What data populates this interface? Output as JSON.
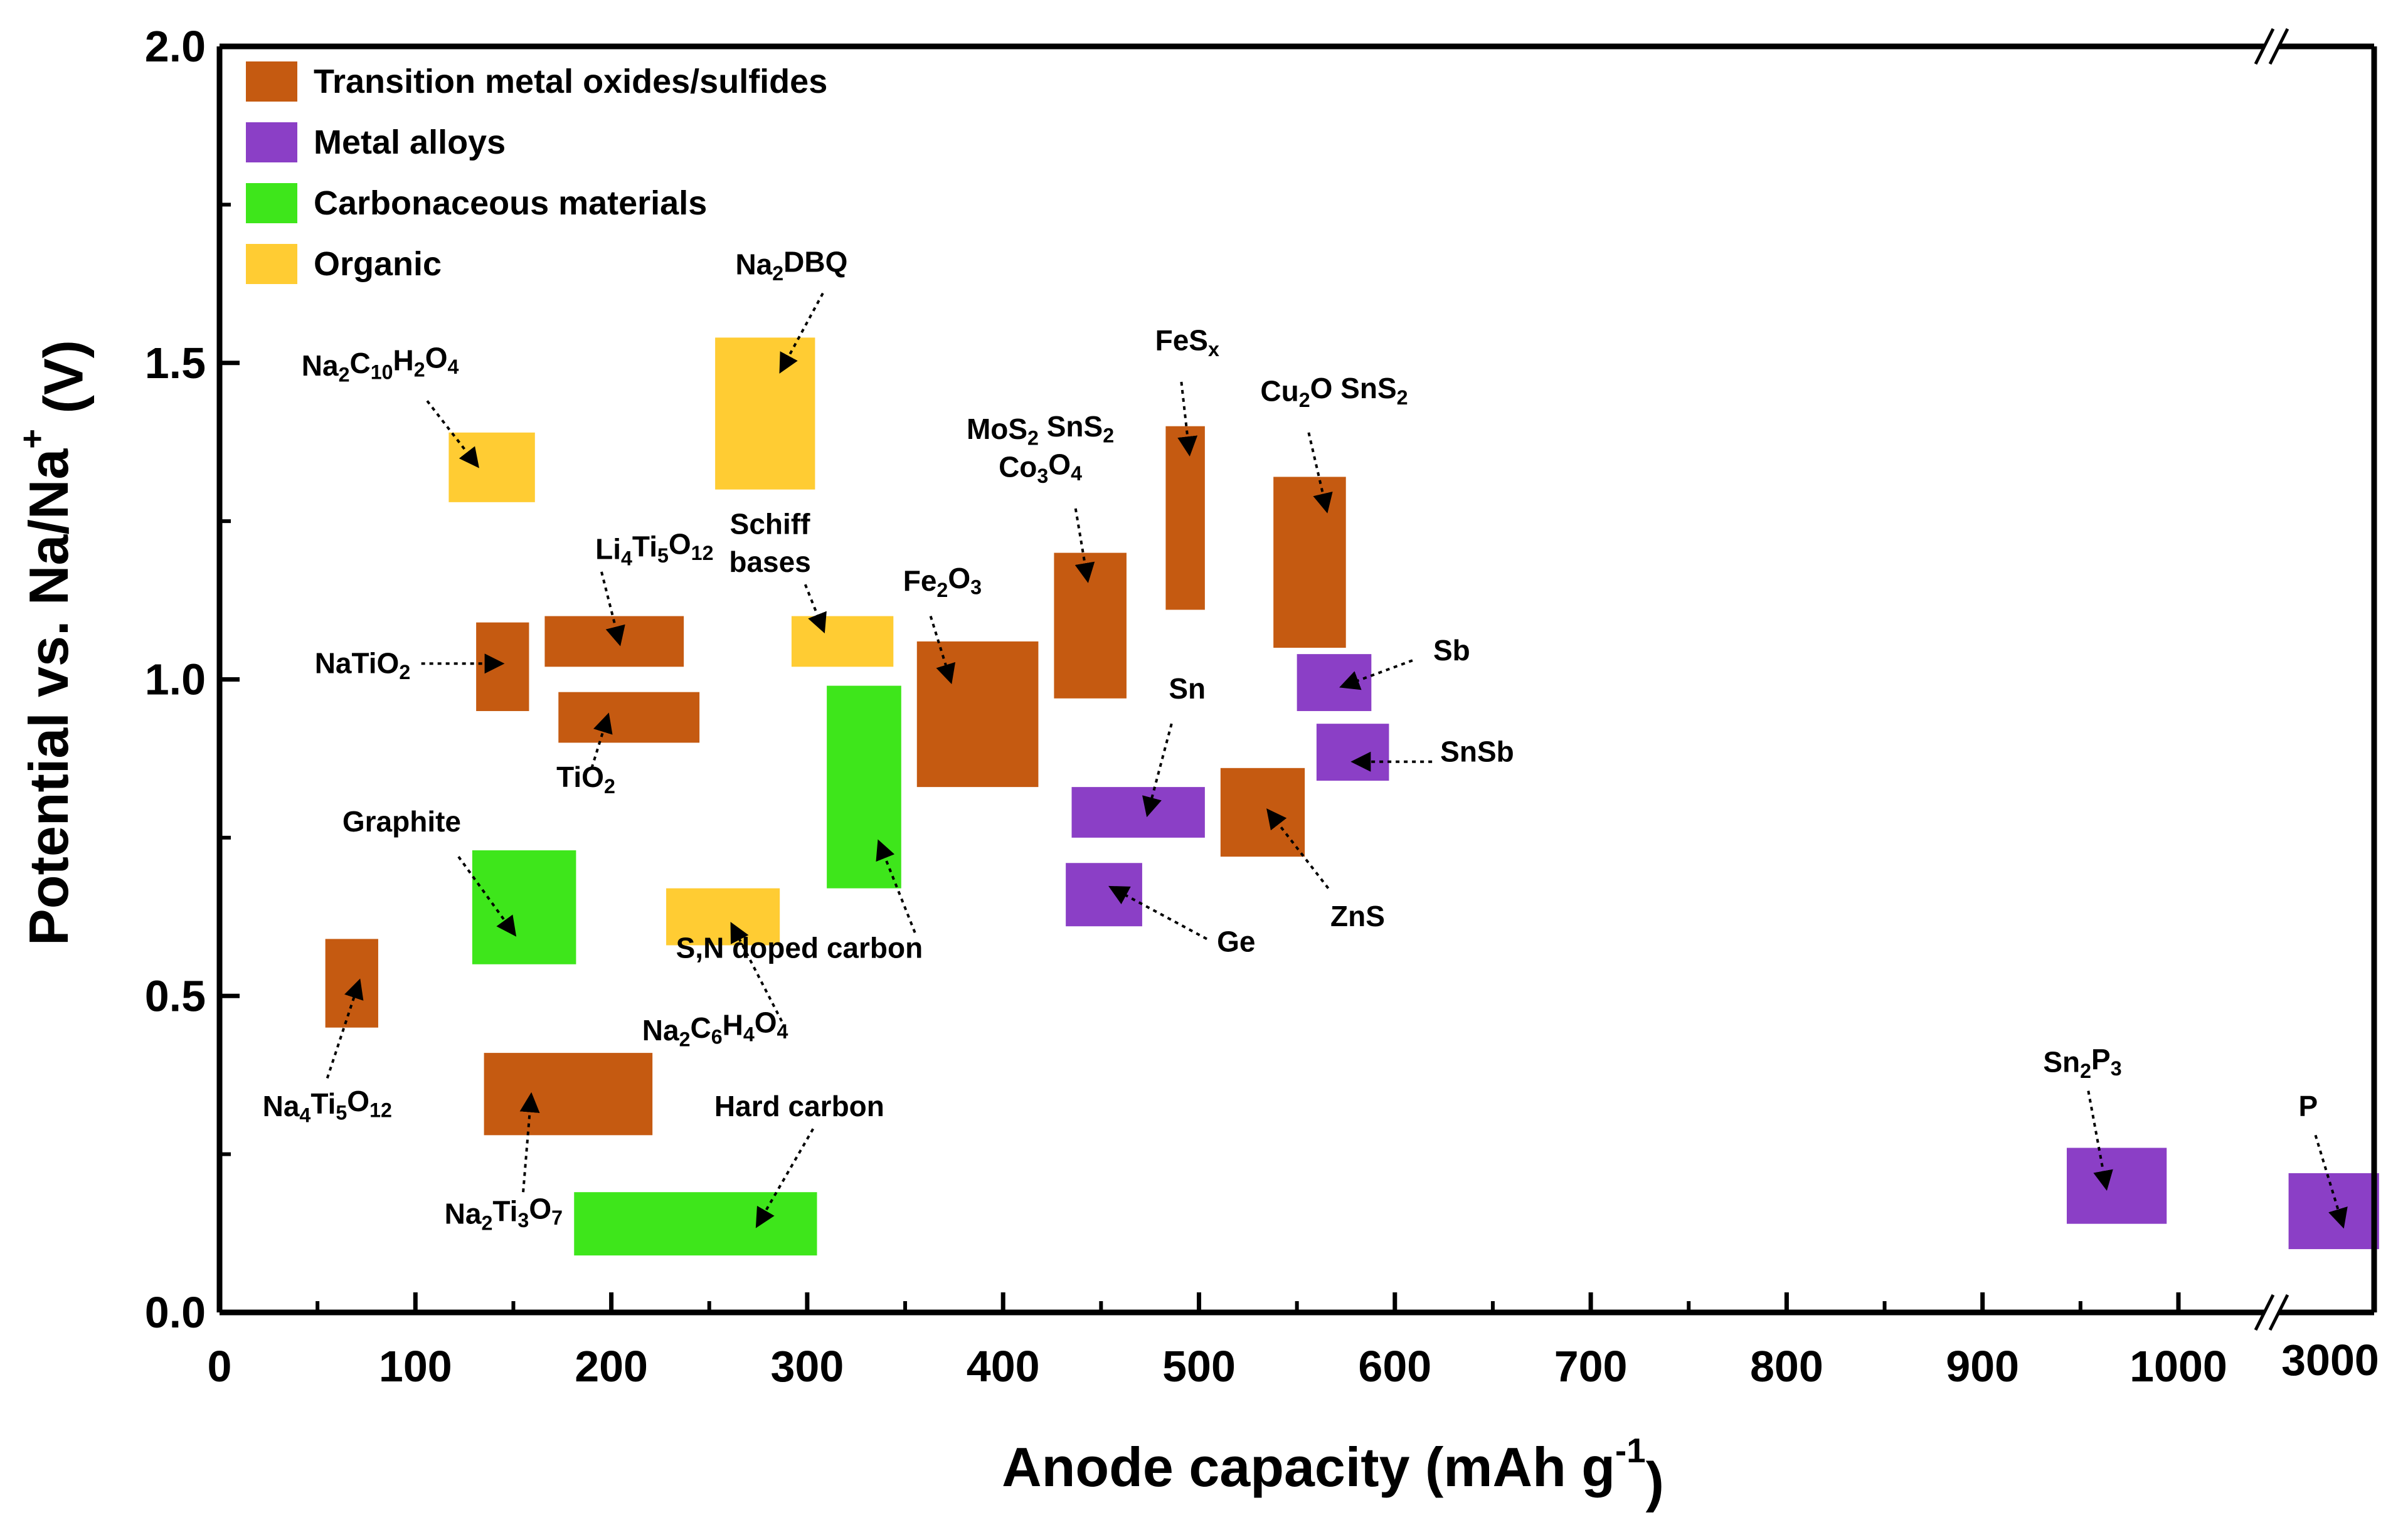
{
  "chart_data": {
    "type": "range-box",
    "title": "",
    "xlabel": "Anode capacity (mAh g",
    "xlabel_sup": "-1",
    "xlabel_close": ")",
    "ylabel": "Potential vs. Na/Na",
    "ylabel_sup": "+",
    "ylabel_close": " (V)",
    "xlim": [
      0,
      1000
    ],
    "xlim_break": 3000,
    "ylim": [
      0,
      2.0
    ],
    "x_ticks": [
      "0",
      "100",
      "200",
      "300",
      "400",
      "500",
      "600",
      "700",
      "800",
      "900",
      "1000"
    ],
    "x_break_tick": "3000",
    "y_ticks": [
      "0.0",
      "0.5",
      "1.0",
      "1.5",
      "2.0"
    ],
    "colors": {
      "Transition metal oxides/sulfides": "#c55a11",
      "Metal alloys": "#8b3fc6",
      "Carbonaceous materials": "#3ee61b",
      "Organic": "#ffcc33"
    },
    "legend": [
      {
        "name": "Transition metal oxides/sulfides",
        "color": "#c55a11"
      },
      {
        "name": "Metal alloys",
        "color": "#8b3fc6"
      },
      {
        "name": "Carbonaceous materials",
        "color": "#3ee61b"
      },
      {
        "name": "Organic",
        "color": "#ffcc33"
      }
    ],
    "materials": [
      {
        "id": "na4ti5o12",
        "category": "Transition metal oxides/sulfides",
        "x": [
          54,
          81
        ],
        "y": [
          0.45,
          0.59
        ],
        "label": [
          "Na",
          {
            "sub": "4"
          },
          "Ti",
          {
            "sub": "5"
          },
          "O",
          {
            "sub": "12"
          }
        ],
        "lx": 55,
        "ly": 0.31,
        "ax": [
          55,
          0.37
        ],
        "at": [
          71,
          0.52
        ]
      },
      {
        "id": "na2ti3o7",
        "category": "Transition metal oxides/sulfides",
        "x": [
          135,
          221
        ],
        "y": [
          0.28,
          0.41
        ],
        "label": [
          "Na",
          {
            "sub": "2"
          },
          "Ti",
          {
            "sub": "3"
          },
          "O",
          {
            "sub": "7"
          }
        ],
        "lx": 145,
        "ly": 0.14,
        "ax": [
          155,
          0.19
        ],
        "at": [
          159,
          0.34
        ]
      },
      {
        "id": "natio2",
        "category": "Transition metal oxides/sulfides",
        "x": [
          131,
          158
        ],
        "y": [
          0.95,
          1.09
        ],
        "label": [
          "NaTiO",
          {
            "sub": "2"
          }
        ],
        "lx": 73,
        "ly": 1.01,
        "ax": [
          103,
          1.025
        ],
        "at": [
          143,
          1.025
        ]
      },
      {
        "id": "li4ti5o12",
        "category": "Transition metal oxides/sulfides",
        "x": [
          166,
          237
        ],
        "y": [
          1.02,
          1.1
        ],
        "label": [
          "Li",
          {
            "sub": "4"
          },
          "Ti",
          {
            "sub": "5"
          },
          "O",
          {
            "sub": "12"
          }
        ],
        "lx": 222,
        "ly": 1.19,
        "ax": [
          195,
          1.17
        ],
        "at": [
          204,
          1.06
        ]
      },
      {
        "id": "tio2",
        "category": "Transition metal oxides/sulfides",
        "x": [
          173,
          245
        ],
        "y": [
          0.9,
          0.98
        ],
        "label": [
          "TiO",
          {
            "sub": "2"
          }
        ],
        "lx": 187,
        "ly": 0.83,
        "ax": [
          190,
          0.86
        ],
        "at": [
          198,
          0.94
        ]
      },
      {
        "id": "fe2o3",
        "category": "Transition metal oxides/sulfides",
        "x": [
          356,
          418
        ],
        "y": [
          0.83,
          1.06
        ],
        "label": [
          "Fe",
          {
            "sub": "2"
          },
          "O",
          {
            "sub": "3"
          }
        ],
        "lx": 369,
        "ly": 1.14,
        "ax": [
          363,
          1.1
        ],
        "at": [
          373,
          1.0
        ]
      },
      {
        "id": "mos2",
        "category": "Transition metal oxides/sulfides",
        "x": [
          426,
          463
        ],
        "y": [
          0.97,
          1.2
        ],
        "label": [
          "MoS",
          {
            "sub": "2"
          },
          " SnS",
          {
            "sub": "2"
          }
        ],
        "label2": [
          "Co",
          {
            "sub": "3"
          },
          "O",
          {
            "sub": "4"
          }
        ],
        "lx": 419,
        "ly": 1.38,
        "ly2": 1.32,
        "ax": [
          437,
          1.27
        ],
        "at": [
          443,
          1.16
        ]
      },
      {
        "id": "fesx",
        "category": "Transition metal oxides/sulfides",
        "x": [
          483,
          503
        ],
        "y": [
          1.11,
          1.4
        ],
        "label": [
          "FeS",
          {
            "sub": "x"
          }
        ],
        "lx": 494,
        "ly": 1.52,
        "ax": [
          491,
          1.47
        ],
        "at": [
          495,
          1.36
        ]
      },
      {
        "id": "cu2o",
        "category": "Transition metal oxides/sulfides",
        "x": [
          538,
          575
        ],
        "y": [
          1.05,
          1.32
        ],
        "label": [
          "Cu",
          {
            "sub": "2"
          },
          "O SnS",
          {
            "sub": "2"
          }
        ],
        "lx": 569,
        "ly": 1.44,
        "ax": [
          556,
          1.39
        ],
        "at": [
          565,
          1.27
        ]
      },
      {
        "id": "zns",
        "category": "Transition metal oxides/sulfides",
        "x": [
          511,
          554
        ],
        "y": [
          0.72,
          0.86
        ],
        "label": [
          "ZnS"
        ],
        "lx": 581,
        "ly": 0.61,
        "ax": [
          566,
          0.67
        ],
        "at": [
          536,
          0.79
        ]
      },
      {
        "id": "sn",
        "category": "Metal alloys",
        "x": [
          435,
          503
        ],
        "y": [
          0.75,
          0.83
        ],
        "label": [
          "Sn"
        ],
        "lx": 494,
        "ly": 0.97,
        "ax": [
          486,
          0.93
        ],
        "at": [
          474,
          0.79
        ]
      },
      {
        "id": "ge",
        "category": "Metal alloys",
        "x": [
          432,
          471
        ],
        "y": [
          0.61,
          0.71
        ],
        "label": [
          "Ge"
        ],
        "lx": 519,
        "ly": 0.57,
        "ax": [
          504,
          0.59
        ],
        "at": [
          456,
          0.67
        ]
      },
      {
        "id": "sb",
        "category": "Metal alloys",
        "x": [
          550,
          588
        ],
        "y": [
          0.95,
          1.04
        ],
        "label": [
          "Sb"
        ],
        "lx": 629,
        "ly": 1.03,
        "ax": [
          609,
          1.03
        ],
        "at": [
          574,
          0.99
        ]
      },
      {
        "id": "snsb",
        "category": "Metal alloys",
        "x": [
          560,
          597
        ],
        "y": [
          0.84,
          0.93
        ],
        "label": [
          "SnSb"
        ],
        "lx": 642,
        "ly": 0.87,
        "ax": [
          619,
          0.87
        ],
        "at": [
          580,
          0.87
        ]
      },
      {
        "id": "sn2p3",
        "category": "Metal alloys",
        "x": [
          943,
          994
        ],
        "y": [
          0.14,
          0.26
        ],
        "label": [
          "Sn",
          {
            "sub": "2"
          },
          "P",
          {
            "sub": "3"
          }
        ],
        "lx": 951,
        "ly": 0.38,
        "ax": [
          954,
          0.35
        ],
        "at": [
          963,
          0.2
        ]
      },
      {
        "id": "p",
        "category": "Metal alloys",
        "x": [
          1040,
          1077
        ],
        "y": [
          0.1,
          0.22
        ],
        "label": [
          "P"
        ],
        "lx": 1048,
        "ly": 0.31,
        "ax": [
          1051,
          0.28
        ],
        "at": [
          1062,
          0.14
        ]
      },
      {
        "id": "graphite",
        "category": "Carbonaceous materials",
        "x": [
          129,
          182
        ],
        "y": [
          0.55,
          0.73
        ],
        "label": [
          "Graphite"
        ],
        "lx": 93,
        "ly": 0.76,
        "ax": [
          122,
          0.72
        ],
        "at": [
          150,
          0.6
        ]
      },
      {
        "id": "sndoped",
        "category": "Carbonaceous materials",
        "x": [
          310,
          348
        ],
        "y": [
          0.67,
          0.99
        ],
        "label": [
          "S,N doped carbon"
        ],
        "lx": 296,
        "ly": 0.56,
        "ax": [
          355,
          0.6
        ],
        "at": [
          337,
          0.74
        ]
      },
      {
        "id": "hardcarbon",
        "category": "Carbonaceous materials",
        "x": [
          181,
          305
        ],
        "y": [
          0.09,
          0.19
        ],
        "label": [
          "Hard carbon"
        ],
        "lx": 296,
        "ly": 0.31,
        "ax": [
          303,
          0.29
        ],
        "at": [
          275,
          0.14
        ]
      },
      {
        "id": "na2c10h2o4",
        "category": "Organic",
        "x": [
          117,
          161
        ],
        "y": [
          1.28,
          1.39
        ],
        "label": [
          "Na",
          {
            "sub": "2"
          },
          "C",
          {
            "sub": "10"
          },
          "H",
          {
            "sub": "2"
          },
          "O",
          {
            "sub": "4"
          }
        ],
        "lx": 82,
        "ly": 1.48,
        "ax": [
          106,
          1.44
        ],
        "at": [
          131,
          1.34
        ]
      },
      {
        "id": "na2dbq",
        "category": "Organic",
        "x": [
          253,
          304
        ],
        "y": [
          1.3,
          1.54
        ],
        "label": [
          "Na",
          {
            "sub": "2"
          },
          "DBQ"
        ],
        "lx": 292,
        "ly": 1.64,
        "ax": [
          308,
          1.61
        ],
        "at": [
          287,
          1.49
        ]
      },
      {
        "id": "schiff",
        "category": "Organic",
        "x": [
          292,
          344
        ],
        "y": [
          1.02,
          1.1
        ],
        "label": [
          "Schiff"
        ],
        "label2": [
          "bases"
        ],
        "lx": 281,
        "ly": 1.23,
        "ly2": 1.17,
        "ax": [
          299,
          1.15
        ],
        "at": [
          308,
          1.08
        ]
      },
      {
        "id": "na2c6h4o4",
        "category": "Organic",
        "x": [
          228,
          286
        ],
        "y": [
          0.58,
          0.67
        ],
        "label": [
          "Na",
          {
            "sub": "2"
          },
          "C",
          {
            "sub": "6"
          },
          "H",
          {
            "sub": "4"
          },
          "O",
          {
            "sub": "4"
          }
        ],
        "lx": 253,
        "ly": 0.43,
        "ax": [
          287,
          0.46
        ],
        "at": [
          262,
          0.61
        ]
      }
    ]
  }
}
